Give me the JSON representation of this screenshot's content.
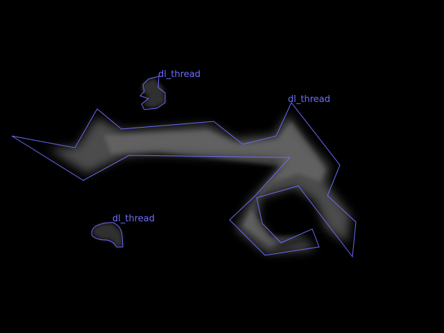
{
  "colors": {
    "background": "#000000",
    "annotation": "#6d6dff",
    "texture": "#8a8a8a"
  },
  "annotations": [
    {
      "label": "dl_thread"
    },
    {
      "label": "dl_thread"
    },
    {
      "label": "dl_thread"
    }
  ]
}
